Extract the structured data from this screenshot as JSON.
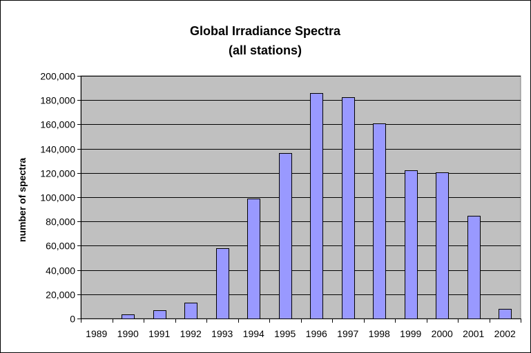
{
  "chart_data": {
    "type": "bar",
    "title": "Global Irradiance Spectra",
    "subtitle": "(all stations)",
    "xlabel": "",
    "ylabel": "number of spectra",
    "categories": [
      "1989",
      "1990",
      "1991",
      "1992",
      "1993",
      "1994",
      "1995",
      "1996",
      "1997",
      "1998",
      "1999",
      "2000",
      "2001",
      "2002"
    ],
    "values": [
      0,
      3500,
      7000,
      13000,
      58000,
      99000,
      136500,
      186000,
      182500,
      161000,
      122000,
      120500,
      84500,
      8000
    ],
    "ylim": [
      0,
      200000
    ],
    "yticks": [
      "0",
      "20,000",
      "40,000",
      "60,000",
      "80,000",
      "100,000",
      "120,000",
      "140,000",
      "160,000",
      "180,000",
      "200,000"
    ],
    "grid": true,
    "legend": "none",
    "colors": {
      "plot_background": "#c0c0c0",
      "bar_fill": "#9999ff",
      "bar_stroke": "#000000",
      "gridline": "#000000"
    }
  }
}
